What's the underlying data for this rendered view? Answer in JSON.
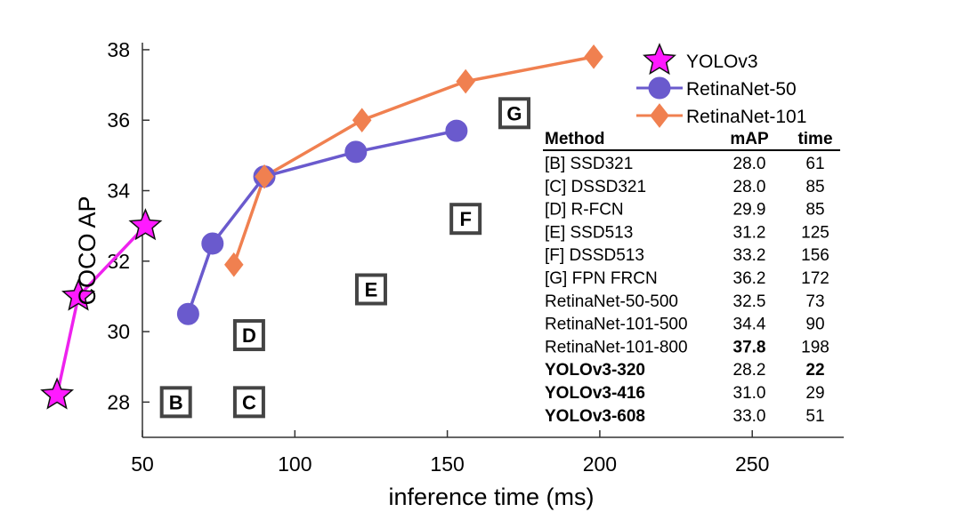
{
  "chart_data": {
    "type": "line",
    "title": "",
    "xlabel": "inference time (ms)",
    "ylabel": "COCO AP",
    "xlim": [
      50,
      280
    ],
    "ylim": [
      27,
      38.2
    ],
    "xticks": [
      50,
      100,
      150,
      200,
      250
    ],
    "yticks": [
      28,
      30,
      32,
      34,
      36,
      38
    ],
    "grid": false,
    "legend_position": "top-right",
    "series": [
      {
        "name": "YOLOv3",
        "marker": "star",
        "color": "#ff1aff",
        "line_color": "#ee22ee",
        "points": [
          [
            22,
            28.2
          ],
          [
            29,
            31.0
          ],
          [
            51,
            33.0
          ]
        ]
      },
      {
        "name": "RetinaNet-50",
        "marker": "circle",
        "color": "#6a5acd",
        "points": [
          [
            73,
            32.5
          ],
          [
            90,
            34.4
          ],
          [
            120,
            35.1
          ],
          [
            153,
            35.7
          ]
        ]
      },
      {
        "name": "RetinaNet-101",
        "marker": "diamond",
        "color": "#f08050",
        "points": [
          [
            90,
            34.4
          ],
          [
            122,
            36.0
          ],
          [
            156,
            37.1
          ],
          [
            198,
            37.8
          ]
        ]
      }
    ],
    "blue_extra": {
      "points": [
        [
          65,
          30.5
        ]
      ]
    },
    "labeled_points": [
      {
        "label": "B",
        "x": 61,
        "y": 28.0
      },
      {
        "label": "C",
        "x": 85,
        "y": 28.0
      },
      {
        "label": "D",
        "x": 85,
        "y": 29.9
      },
      {
        "label": "E",
        "x": 125,
        "y": 31.2
      },
      {
        "label": "F",
        "x": 156,
        "y": 33.2
      },
      {
        "label": "G",
        "x": 172,
        "y": 36.2
      }
    ],
    "table": {
      "headers": [
        "Method",
        "mAP",
        "time"
      ],
      "rows": [
        {
          "method": "[B] SSD321",
          "map": "28.0",
          "time": "61",
          "bold_method": false,
          "bold_map": false,
          "bold_time": false
        },
        {
          "method": "[C] DSSD321",
          "map": "28.0",
          "time": "85",
          "bold_method": false,
          "bold_map": false,
          "bold_time": false
        },
        {
          "method": "[D] R-FCN",
          "map": "29.9",
          "time": "85",
          "bold_method": false,
          "bold_map": false,
          "bold_time": false
        },
        {
          "method": "[E] SSD513",
          "map": "31.2",
          "time": "125",
          "bold_method": false,
          "bold_map": false,
          "bold_time": false
        },
        {
          "method": "[F] DSSD513",
          "map": "33.2",
          "time": "156",
          "bold_method": false,
          "bold_map": false,
          "bold_time": false
        },
        {
          "method": "[G] FPN FRCN",
          "map": "36.2",
          "time": "172",
          "bold_method": false,
          "bold_map": false,
          "bold_time": false
        },
        {
          "method": "RetinaNet-50-500",
          "map": "32.5",
          "time": "73",
          "bold_method": false,
          "bold_map": false,
          "bold_time": false
        },
        {
          "method": "RetinaNet-101-500",
          "map": "34.4",
          "time": "90",
          "bold_method": false,
          "bold_map": false,
          "bold_time": false
        },
        {
          "method": "RetinaNet-101-800",
          "map": "37.8",
          "time": "198",
          "bold_method": false,
          "bold_map": true,
          "bold_time": false
        },
        {
          "method": "YOLOv3-320",
          "map": "28.2",
          "time": "22",
          "bold_method": true,
          "bold_map": false,
          "bold_time": true
        },
        {
          "method": "YOLOv3-416",
          "map": "31.0",
          "time": "29",
          "bold_method": true,
          "bold_map": false,
          "bold_time": false
        },
        {
          "method": "YOLOv3-608",
          "map": "33.0",
          "time": "51",
          "bold_method": true,
          "bold_map": false,
          "bold_time": false
        }
      ]
    }
  }
}
